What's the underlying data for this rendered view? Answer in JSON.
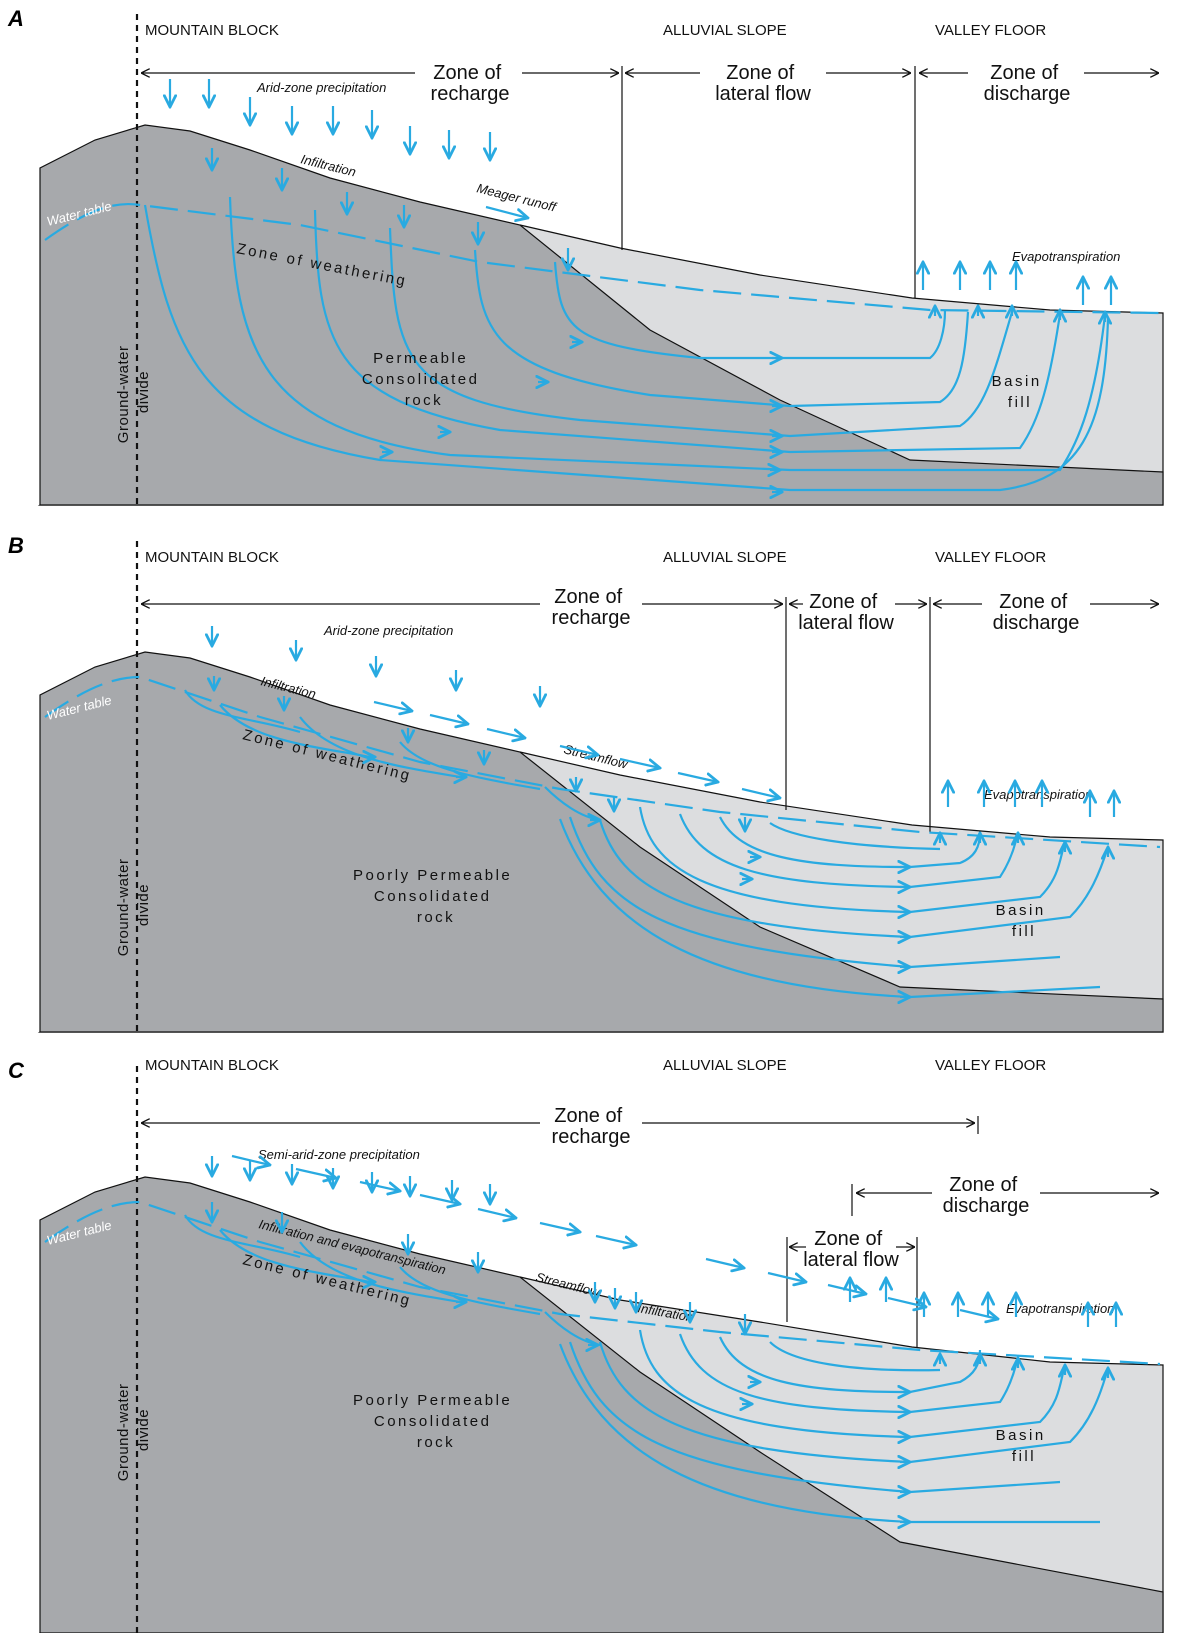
{
  "panels": [
    {
      "label": "A",
      "regions": [
        "MOUNTAIN BLOCK",
        "ALLUVIAL SLOPE",
        "VALLEY FLOOR"
      ],
      "zones": [
        {
          "line1": "Zone of",
          "line2": "recharge"
        },
        {
          "line1": "Zone of",
          "line2": "lateral flow"
        },
        {
          "line1": "Zone of",
          "line2": "discharge"
        }
      ],
      "precipitation": "Arid-zone precipitation",
      "infiltration": "Infiltration",
      "runoff": "Meager runoff",
      "evapotranspiration": "Evapotranspiration",
      "water_table": "Water table",
      "weathering": "Zone of weathering",
      "rock": [
        "Permeable",
        "Consolidated",
        "rock"
      ],
      "fill": [
        "Basin",
        "fill"
      ],
      "divide": [
        "Ground-water",
        "divide"
      ]
    },
    {
      "label": "B",
      "regions": [
        "MOUNTAIN BLOCK",
        "ALLUVIAL SLOPE",
        "VALLEY FLOOR"
      ],
      "zones": [
        {
          "line1": "Zone of",
          "line2": "recharge"
        },
        {
          "line1": "Zone of",
          "line2": "lateral flow"
        },
        {
          "line1": "Zone of",
          "line2": "discharge"
        }
      ],
      "precipitation": "Arid-zone precipitation",
      "infiltration": "Infiltration",
      "streamflow": "Streamflow",
      "evapotranspiration": "Evapotranspiration",
      "water_table": "Water table",
      "weathering": "Zone of weathering",
      "rock": [
        "Poorly Permeable",
        "Consolidated",
        "rock"
      ],
      "fill": [
        "Basin",
        "fill"
      ],
      "divide": [
        "Ground-water",
        "divide"
      ]
    },
    {
      "label": "C",
      "regions": [
        "MOUNTAIN BLOCK",
        "ALLUVIAL SLOPE",
        "VALLEY FLOOR"
      ],
      "zones": [
        {
          "line1": "Zone of",
          "line2": "recharge"
        },
        {
          "line1": "Zone of",
          "line2": "discharge"
        },
        {
          "line1": "Zone of",
          "line2": "lateral flow"
        }
      ],
      "precipitation": "Semi-arid-zone precipitation",
      "infiltration_et": "Infiltration and evapotranspiration",
      "streamflow": "Streamflow",
      "infiltration": "Infiltration",
      "evapotranspiration": "Evapotranspiration",
      "water_table": "Water table",
      "weathering": "Zone of weathering",
      "rock": [
        "Poorly Permeable",
        "Consolidated",
        "rock"
      ],
      "fill": [
        "Basin",
        "fill"
      ],
      "divide": [
        "Ground-water",
        "divide"
      ]
    }
  ],
  "colors": {
    "rock": "#a7a9ac",
    "fill": "#dcdddf",
    "water": "#29aae1",
    "line": "#111111"
  }
}
